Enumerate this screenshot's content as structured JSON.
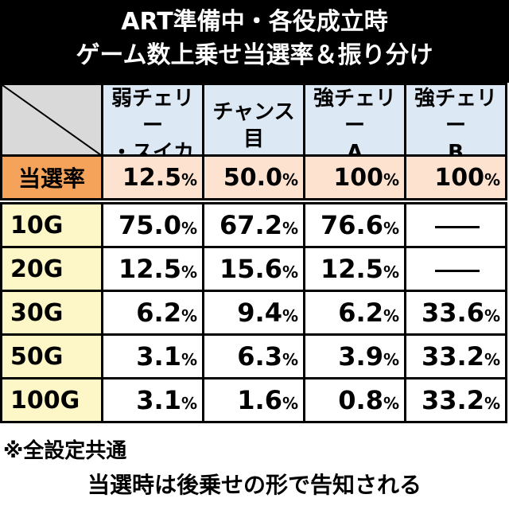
{
  "title": {
    "line1": "ART準備中・各役成立時",
    "line2": "ゲーム数上乗せ当選率＆振り分け"
  },
  "headers": [
    {
      "l1": "弱チェリー",
      "l2": "・スイカ"
    },
    {
      "l1": "チャンス",
      "l2": "目"
    },
    {
      "l1": "強チェリー",
      "l2": "A"
    },
    {
      "l1": "強チェリー",
      "l2": "B"
    }
  ],
  "rate": {
    "label": "当選率",
    "values": [
      {
        "num": "12.5",
        "unit": "%"
      },
      {
        "num": "50.0",
        "unit": "%"
      },
      {
        "num": "100",
        "unit": "%"
      },
      {
        "num": "100",
        "unit": "%"
      }
    ]
  },
  "rows": [
    {
      "label": "10G",
      "values": [
        {
          "num": "75.0",
          "unit": "%"
        },
        {
          "num": "67.2",
          "unit": "%"
        },
        {
          "num": "76.6",
          "unit": "%"
        },
        {
          "num": "",
          "unit": ""
        }
      ]
    },
    {
      "label": "20G",
      "values": [
        {
          "num": "12.5",
          "unit": "%"
        },
        {
          "num": "15.6",
          "unit": "%"
        },
        {
          "num": "12.5",
          "unit": "%"
        },
        {
          "num": "",
          "unit": ""
        }
      ]
    },
    {
      "label": "30G",
      "values": [
        {
          "num": "6.2",
          "unit": "%"
        },
        {
          "num": "9.4",
          "unit": "%"
        },
        {
          "num": "6.2",
          "unit": "%"
        },
        {
          "num": "33.6",
          "unit": "%"
        }
      ]
    },
    {
      "label": "50G",
      "values": [
        {
          "num": "3.1",
          "unit": "%"
        },
        {
          "num": "6.3",
          "unit": "%"
        },
        {
          "num": "3.9",
          "unit": "%"
        },
        {
          "num": "33.2",
          "unit": "%"
        }
      ]
    },
    {
      "label": "100G",
      "values": [
        {
          "num": "3.1",
          "unit": "%"
        },
        {
          "num": "1.6",
          "unit": "%"
        },
        {
          "num": "0.8",
          "unit": "%"
        },
        {
          "num": "33.2",
          "unit": "%"
        }
      ]
    }
  ],
  "notes": {
    "line1": "※全設定共通",
    "line2": "当選時は後乗せの形で告知される"
  }
}
